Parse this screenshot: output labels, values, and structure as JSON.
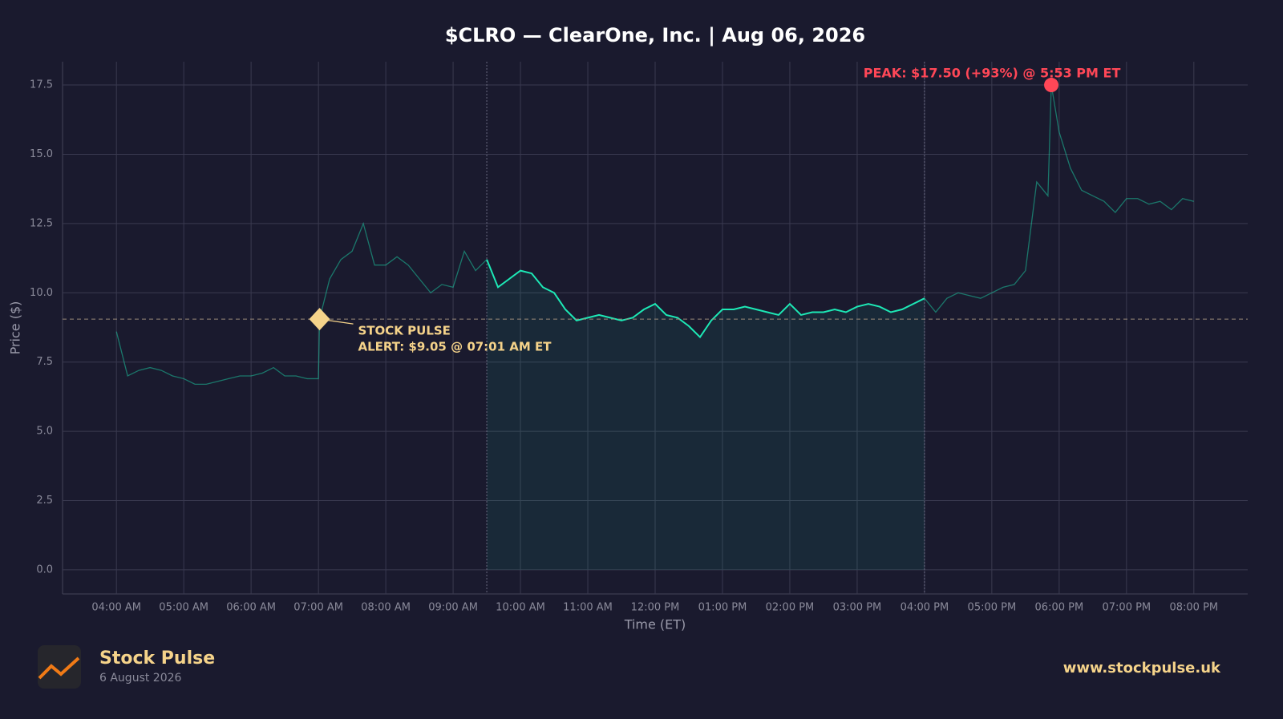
{
  "chart_data": {
    "type": "line",
    "title": "$CLRO — ClearOne, Inc.  |  Aug 06, 2026",
    "xlabel": "Time (ET)",
    "ylabel": "Price ($)",
    "x": [
      240,
      250,
      260,
      270,
      280,
      290,
      300,
      310,
      320,
      330,
      340,
      350,
      360,
      370,
      380,
      390,
      400,
      410,
      420,
      421,
      430,
      440,
      450,
      460,
      470,
      480,
      490,
      500,
      510,
      520,
      530,
      540,
      550,
      560,
      570,
      580,
      590,
      600,
      610,
      620,
      630,
      640,
      650,
      660,
      670,
      680,
      690,
      700,
      710,
      720,
      730,
      740,
      750,
      760,
      770,
      780,
      790,
      800,
      810,
      820,
      830,
      840,
      850,
      860,
      870,
      880,
      890,
      900,
      910,
      920,
      930,
      940,
      950,
      960,
      970,
      980,
      990,
      1000,
      1010,
      1020,
      1030,
      1040,
      1050,
      1060,
      1070,
      1073,
      1080,
      1090,
      1100,
      1110,
      1120,
      1130,
      1140,
      1150,
      1160,
      1170,
      1180,
      1190,
      1200
    ],
    "series": [
      {
        "name": "CLRO",
        "color": "#1de9b6",
        "values": [
          8.6,
          7.0,
          7.2,
          7.3,
          7.2,
          7.0,
          6.9,
          6.7,
          6.7,
          6.8,
          6.9,
          7.0,
          7.0,
          7.1,
          7.3,
          7.0,
          7.0,
          6.9,
          6.9,
          9.05,
          10.5,
          11.2,
          11.5,
          12.5,
          11.0,
          11.0,
          11.3,
          11.0,
          10.5,
          10.0,
          10.3,
          10.2,
          11.5,
          10.8,
          11.2,
          10.2,
          10.5,
          10.8,
          10.7,
          10.2,
          10.0,
          9.4,
          9.0,
          9.1,
          9.2,
          9.1,
          9.0,
          9.1,
          9.4,
          9.6,
          9.2,
          9.1,
          8.8,
          8.4,
          9.0,
          9.4,
          9.4,
          9.5,
          9.4,
          9.3,
          9.2,
          9.6,
          9.2,
          9.3,
          9.3,
          9.4,
          9.3,
          9.5,
          9.6,
          9.5,
          9.3,
          9.4,
          9.6,
          9.8,
          9.3,
          9.8,
          10.0,
          9.9,
          9.8,
          10.0,
          10.2,
          10.3,
          10.8,
          14.0,
          13.5,
          17.5,
          15.8,
          14.5,
          13.7,
          13.5,
          13.3,
          12.9,
          13.4,
          13.4,
          13.2,
          13.3,
          13.0,
          13.4,
          13.3
        ]
      }
    ],
    "session": [
      570,
      960
    ],
    "xlim": [
      192,
      1248
    ],
    "ylim": [
      -0.87,
      18.34
    ],
    "xticks": [
      {
        "value": 240,
        "label": "04:00 AM"
      },
      {
        "value": 300,
        "label": "05:00 AM"
      },
      {
        "value": 360,
        "label": "06:00 AM"
      },
      {
        "value": 420,
        "label": "07:00 AM"
      },
      {
        "value": 480,
        "label": "08:00 AM"
      },
      {
        "value": 540,
        "label": "09:00 AM"
      },
      {
        "value": 600,
        "label": "10:00 AM"
      },
      {
        "value": 660,
        "label": "11:00 AM"
      },
      {
        "value": 720,
        "label": "12:00 PM"
      },
      {
        "value": 780,
        "label": "01:00 PM"
      },
      {
        "value": 840,
        "label": "02:00 PM"
      },
      {
        "value": 900,
        "label": "03:00 PM"
      },
      {
        "value": 960,
        "label": "04:00 PM"
      },
      {
        "value": 1020,
        "label": "05:00 PM"
      },
      {
        "value": 1080,
        "label": "06:00 PM"
      },
      {
        "value": 1140,
        "label": "07:00 PM"
      },
      {
        "value": 1200,
        "label": "08:00 PM"
      }
    ],
    "yticks": [
      {
        "value": 0,
        "label": "0.0"
      },
      2.5,
      {
        "value": 5,
        "label": "5.0"
      },
      7.5,
      {
        "value": 10,
        "label": "10.0"
      },
      12.5,
      {
        "value": 15,
        "label": "15.0"
      },
      17.5
    ],
    "grid": true,
    "alert": {
      "x": 421,
      "value": 9.05,
      "label": [
        "STOCK PULSE",
        "ALERT: $9.05 @ 07:01 AM ET"
      ],
      "color": "#f5d38a"
    },
    "peak": {
      "x": 1073,
      "value": 17.5,
      "label": "PEAK: $17.50 (+93%) @ 5:53 PM ET",
      "color": "#ff4757"
    }
  },
  "footer": {
    "brand": "Stock Pulse",
    "date": "6 August 2026",
    "url": "www.stockpulse.uk"
  }
}
